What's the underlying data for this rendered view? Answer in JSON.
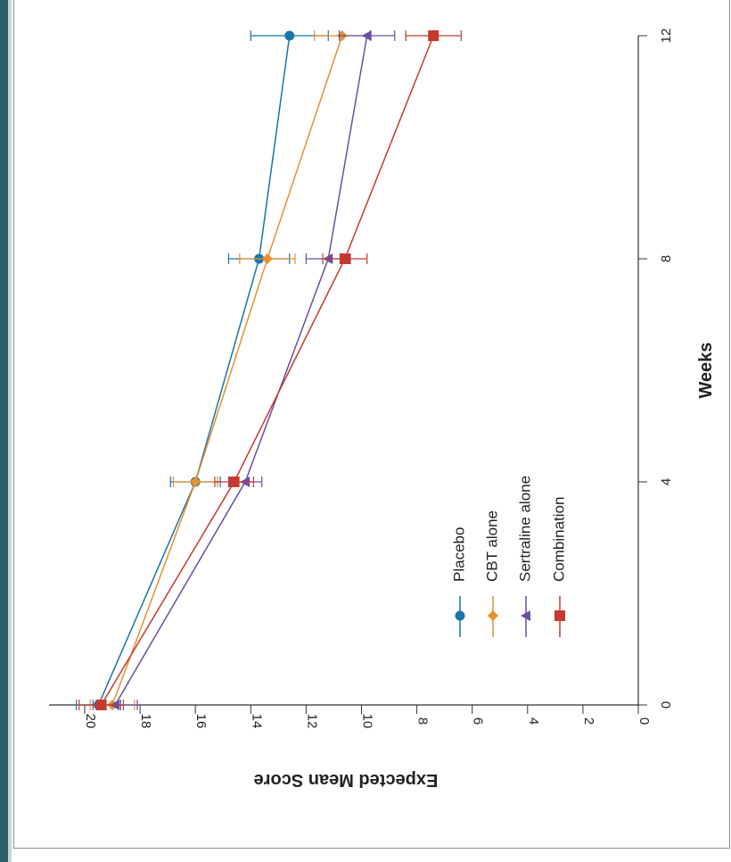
{
  "chart_data": {
    "type": "line",
    "orientation": "rotated-90",
    "xlabel": "Weeks",
    "ylabel": "Expected Mean Score",
    "x": [
      0,
      4,
      8,
      12
    ],
    "xticks": [
      "0",
      "4",
      "8",
      "12"
    ],
    "ylim": [
      0,
      20
    ],
    "yticks": [
      "0",
      "2",
      "4",
      "6",
      "8",
      "10",
      "12",
      "14",
      "16",
      "18",
      "20"
    ],
    "legend_position": "lower-center",
    "series": [
      {
        "name": "Placebo",
        "color": "#1a74a8",
        "marker": "circle",
        "values": [
          19.5,
          16.0,
          13.7,
          12.6
        ],
        "error": [
          0.8,
          0.9,
          1.1,
          1.4
        ]
      },
      {
        "name": "CBT alone",
        "color": "#e8912d",
        "marker": "diamond",
        "values": [
          19.0,
          16.0,
          13.4,
          10.7
        ],
        "error": [
          0.8,
          0.8,
          1.0,
          1.0
        ]
      },
      {
        "name": "Sertraline alone",
        "color": "#6a4fa3",
        "marker": "triangle",
        "values": [
          18.9,
          14.2,
          11.2,
          9.8
        ],
        "error": [
          0.8,
          0.6,
          0.8,
          1.0
        ]
      },
      {
        "name": "Combination",
        "color": "#c53a2f",
        "marker": "square",
        "values": [
          19.4,
          14.6,
          10.6,
          7.4
        ],
        "error": [
          0.8,
          0.7,
          0.8,
          1.0
        ]
      }
    ]
  }
}
